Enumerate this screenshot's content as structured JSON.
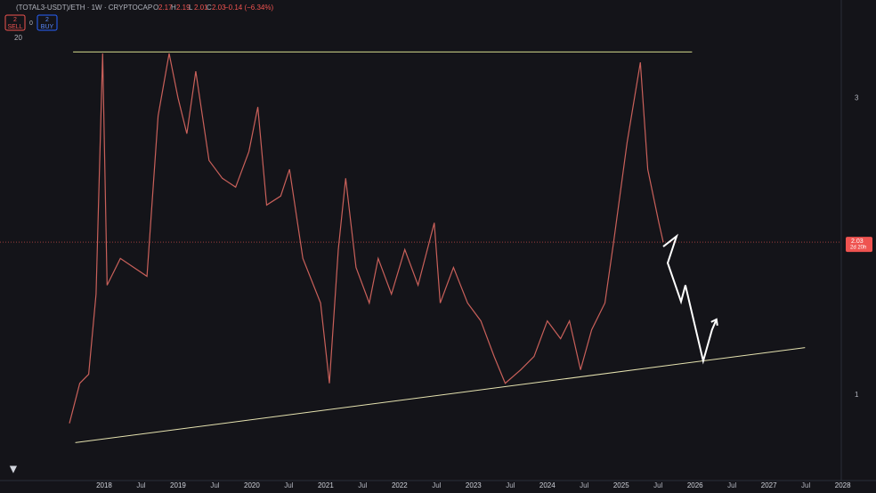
{
  "header": {
    "symbol": "(TOTAL3-USDT)/ETH · 1W · CRYPTOCAP",
    "ohlc": [
      {
        "label": "O",
        "value": 2.17
      },
      {
        "label": "H",
        "value": 2.19
      },
      {
        "label": "L",
        "value": 2.01
      },
      {
        "label": "C",
        "value": 2.03
      }
    ],
    "change": "−0.14 (−6.34%)"
  },
  "toolbar": {
    "sell_count": "2",
    "sell": "SELL",
    "spread": "0",
    "buy_count": "2",
    "buy": "BUY",
    "indicator": "20"
  },
  "chart_data": {
    "type": "line",
    "color": "#c9605a",
    "x": [
      2017.53,
      2017.67,
      2017.79,
      2017.89,
      2017.98,
      2018.04,
      2018.22,
      2018.4,
      2018.58,
      2018.73,
      2018.88,
      2019.0,
      2019.12,
      2019.24,
      2019.42,
      2019.6,
      2019.78,
      2019.96,
      2020.08,
      2020.2,
      2020.39,
      2020.51,
      2020.69,
      2020.93,
      2021.05,
      2021.17,
      2021.27,
      2021.41,
      2021.59,
      2021.71,
      2021.89,
      2022.07,
      2022.25,
      2022.47,
      2022.55,
      2022.73,
      2022.92,
      2023.1,
      2023.28,
      2023.43,
      2023.64,
      2023.82,
      2024.0,
      2024.18,
      2024.3,
      2024.45,
      2024.6,
      2024.78,
      2024.9,
      2025.08,
      2025.26,
      2025.36,
      2025.51,
      2025.57
    ],
    "values": [
      0.81,
      1.08,
      1.14,
      1.68,
      3.3,
      1.74,
      1.92,
      1.86,
      1.8,
      2.88,
      3.3,
      3.0,
      2.76,
      3.18,
      2.58,
      2.46,
      2.4,
      2.64,
      2.94,
      2.28,
      2.34,
      2.52,
      1.92,
      1.62,
      1.08,
      1.98,
      2.46,
      1.86,
      1.62,
      1.92,
      1.68,
      1.98,
      1.74,
      2.16,
      1.62,
      1.86,
      1.62,
      1.5,
      1.26,
      1.08,
      1.17,
      1.26,
      1.5,
      1.38,
      1.5,
      1.17,
      1.44,
      1.62,
      2.04,
      2.7,
      3.24,
      2.52,
      2.16,
      2.03
    ],
    "trendlines": [
      {
        "x": [
          2017.58,
          2025.96
        ],
        "values": [
          3.31,
          3.31
        ],
        "color": "#d4d98a"
      },
      {
        "x": [
          2017.61,
          2027.49
        ],
        "values": [
          0.68,
          1.32
        ],
        "color": "#e6e3b0"
      }
    ],
    "projection": {
      "x": [
        2025.57,
        2025.75,
        2025.63,
        2025.81,
        2025.87,
        2026.11,
        2026.23,
        2026.29
      ],
      "values": [
        2.0,
        2.07,
        1.89,
        1.63,
        1.74,
        1.23,
        1.44,
        1.51
      ],
      "color": "#ffffff"
    },
    "last_price": 2.03,
    "countdown": "2d 20h",
    "xlim": [
      2016.59,
      2027.98
    ],
    "ylim": [
      0.425,
      3.66
    ],
    "yticks": [
      1,
      3
    ],
    "xticks": [
      2018,
      {
        "value": 2018.5,
        "label": "Jul"
      },
      2019,
      {
        "value": 2019.5,
        "label": "Jul"
      },
      2020,
      {
        "value": 2020.5,
        "label": "Jul"
      },
      2021,
      {
        "value": 2021.5,
        "label": "Jul"
      },
      2022,
      {
        "value": 2022.5,
        "label": "Jul"
      },
      2023,
      {
        "value": 2023.5,
        "label": "Jul"
      },
      2024,
      {
        "value": 2024.5,
        "label": "Jul"
      },
      2025,
      {
        "value": 2025.5,
        "label": "Jul"
      },
      2026,
      {
        "value": 2026.5,
        "label": "Jul"
      },
      2027,
      {
        "value": 2027.5,
        "label": "Jul"
      },
      2028
    ]
  }
}
